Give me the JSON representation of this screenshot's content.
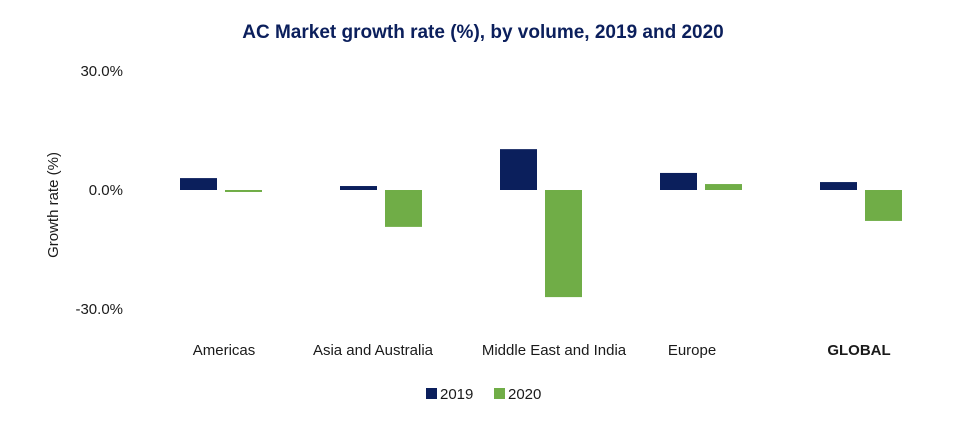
{
  "chart_data": {
    "type": "bar",
    "title": "AC Market growth rate (%), by volume, 2019 and 2020",
    "xlabel": "",
    "ylabel": "Growth rate (%)",
    "ylim": [
      -30,
      30
    ],
    "yticks": [
      30,
      0,
      -30
    ],
    "ytick_labels": [
      "30.0%",
      "0.0%",
      "-30.0%"
    ],
    "grid": false,
    "legend_position": "bottom",
    "categories": [
      "Americas",
      "Asia and Australia",
      "Middle East and India",
      "Europe",
      "GLOBAL"
    ],
    "bold_categories": [
      "GLOBAL"
    ],
    "series": [
      {
        "name": "2019",
        "color": "#0b1f5c",
        "values": [
          3.0,
          1.0,
          10.3,
          4.3,
          2.0
        ]
      },
      {
        "name": "2020",
        "color": "#70ad47",
        "values": [
          -0.5,
          -9.3,
          -27.0,
          1.5,
          -7.8
        ]
      }
    ]
  }
}
